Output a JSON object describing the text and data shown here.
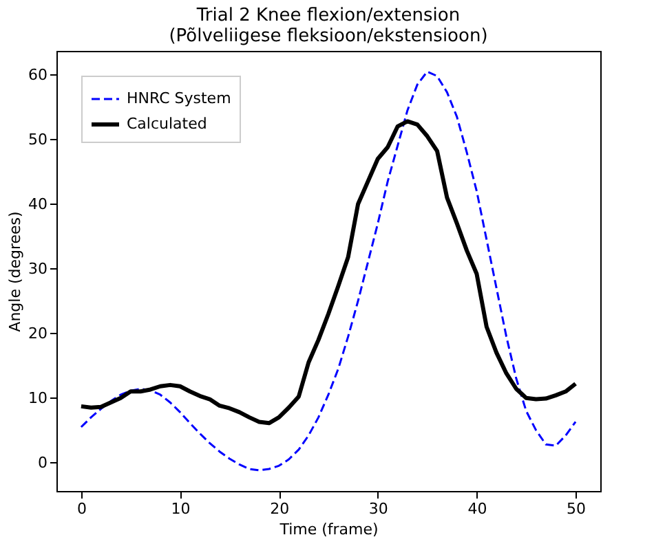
{
  "chart_data": {
    "type": "line",
    "title": [
      "Trial 2 Knee flexion/extension",
      "(Põlveliigese fleksioon/ekstensioon)"
    ],
    "xlabel": "Time (frame)",
    "ylabel": "Angle (degrees)",
    "xlim": [
      -2.5,
      52.5
    ],
    "ylim": [
      -4.4,
      63.7
    ],
    "xticks": [
      0,
      10,
      20,
      30,
      40,
      50
    ],
    "yticks": [
      0,
      10,
      20,
      30,
      40,
      50,
      60
    ],
    "grid": false,
    "legend": "top left",
    "series": [
      {
        "name": "HNRC System",
        "color": "#0000ff",
        "line_style": "dashed",
        "x": [
          0,
          1,
          2,
          3,
          4,
          5,
          6,
          7,
          8,
          9,
          10,
          11,
          12,
          13,
          14,
          15,
          16,
          17,
          18,
          19,
          20,
          21,
          22,
          23,
          24,
          25,
          26,
          27,
          28,
          29,
          30,
          31,
          32,
          33,
          34,
          35,
          36,
          37,
          38,
          39,
          40,
          41,
          42,
          43,
          44,
          45,
          46,
          47,
          48,
          49,
          50
        ],
        "values": [
          5.5,
          7,
          8.3,
          9.5,
          10.5,
          11.1,
          11.4,
          11.2,
          10.5,
          9.3,
          7.8,
          6.1,
          4.5,
          3,
          1.7,
          0.6,
          -0.3,
          -1,
          -1.2,
          -1,
          -0.5,
          0.5,
          2,
          4.2,
          7,
          10.5,
          14.5,
          19.5,
          25,
          31,
          37,
          43.5,
          49,
          54.5,
          58.5,
          60.5,
          59.8,
          57.3,
          53.5,
          48,
          42,
          34.5,
          27,
          19.5,
          13,
          8,
          5,
          2.8,
          2.6,
          4.2,
          6.3
        ]
      },
      {
        "name": "Calculated",
        "color": "#000000",
        "line_style": "solid",
        "x": [
          0,
          1,
          2,
          3,
          4,
          5,
          6,
          7,
          8,
          9,
          10,
          11,
          12,
          13,
          14,
          15,
          16,
          17,
          18,
          19,
          20,
          21,
          22,
          23,
          24,
          25,
          26,
          27,
          28,
          29,
          30,
          31,
          32,
          33,
          34,
          35,
          36,
          37,
          38,
          39,
          40,
          41,
          42,
          43,
          44,
          45,
          46,
          47,
          48,
          49,
          50
        ],
        "values": [
          8.7,
          8.5,
          8.6,
          9.3,
          10,
          11,
          11,
          11.3,
          11.8,
          12,
          11.8,
          11,
          10.3,
          9.8,
          8.8,
          8.4,
          7.8,
          7,
          6.3,
          6.1,
          7,
          8.5,
          10.2,
          15.5,
          19,
          23,
          27.3,
          31.8,
          40,
          43.5,
          47,
          48.8,
          52,
          52.8,
          52.3,
          50.5,
          48.2,
          41,
          37,
          32.8,
          29.2,
          21,
          17,
          13.8,
          11.4,
          10,
          9.8,
          9.9,
          10.4,
          11,
          12.2
        ]
      }
    ]
  }
}
